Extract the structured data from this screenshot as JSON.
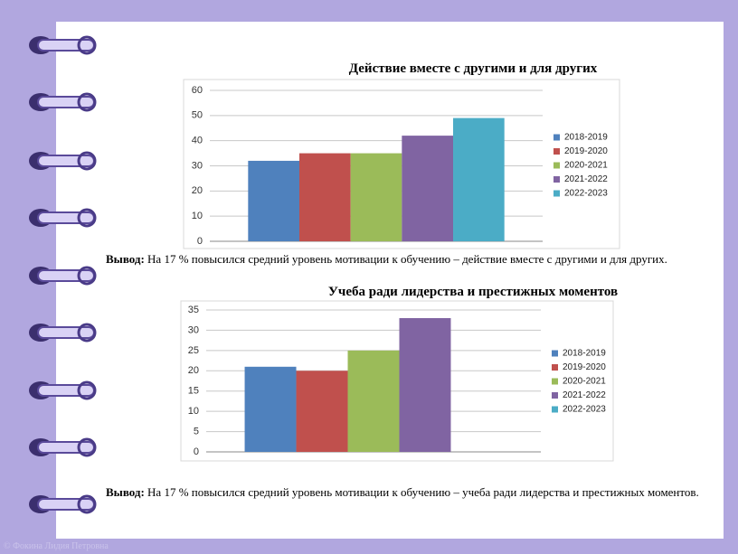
{
  "chart_data": [
    {
      "type": "bar",
      "title": "Действие вместе с другими и для других",
      "categories": [
        null
      ],
      "series": [
        {
          "name": "2018-2019",
          "color": "#4f81bd",
          "values": [
            32
          ]
        },
        {
          "name": "2019-2020",
          "color": "#c0504d",
          "values": [
            35
          ]
        },
        {
          "name": "2020-2021",
          "color": "#9bbb59",
          "values": [
            35
          ]
        },
        {
          "name": "2021-2022",
          "color": "#8064a2",
          "values": [
            42
          ]
        },
        {
          "name": "2022-2023",
          "color": "#4bacc6",
          "values": [
            49
          ]
        }
      ],
      "ylim": [
        0,
        60
      ],
      "yticks": [
        0,
        10,
        20,
        30,
        40,
        50,
        60
      ],
      "grid": true,
      "legend": "right"
    },
    {
      "type": "bar",
      "title": "Учеба ради лидерства и престижных моментов",
      "categories": [
        null
      ],
      "series": [
        {
          "name": "2018-2019",
          "color": "#4f81bd",
          "values": [
            21
          ]
        },
        {
          "name": "2019-2020",
          "color": "#c0504d",
          "values": [
            20
          ]
        },
        {
          "name": "2020-2021",
          "color": "#9bbb59",
          "values": [
            25
          ]
        },
        {
          "name": "2021-2022",
          "color": "#8064a2",
          "values": [
            33
          ]
        },
        {
          "name": "2022-2023",
          "color": "#4bacc6",
          "values": [
            null
          ]
        }
      ],
      "ylim": [
        0,
        35
      ],
      "yticks": [
        0,
        5,
        10,
        15,
        20,
        25,
        30,
        35
      ],
      "grid": true,
      "legend": "right"
    }
  ],
  "conclusions": [
    {
      "label": "Вывод:",
      "text": "На 17 %  повысился средний уровень мотивации к обучению – действие вместе с другими и для других."
    },
    {
      "label": "Вывод:",
      "text": "На 17 % повысился средний уровень мотивации к обучению – учеба ради лидерства и престижных моментов."
    }
  ],
  "footer": "© Фокина Лидия Петровна"
}
